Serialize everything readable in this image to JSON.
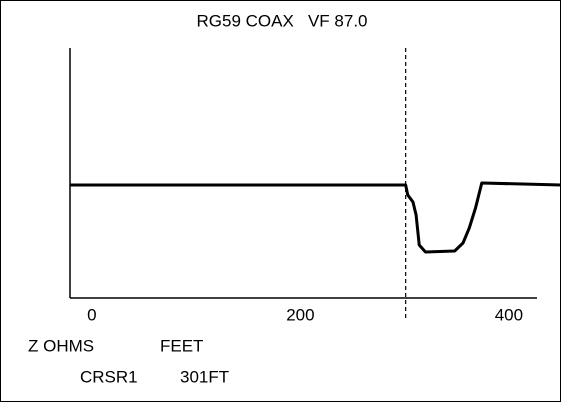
{
  "chart_data": {
    "type": "line",
    "title": "RG59 COAX   VF 87.0",
    "ylabel": "Z OHMS",
    "xlabel": "FEET",
    "x": [
      -21,
      301,
      303,
      308,
      311,
      314,
      320,
      348,
      356,
      362,
      368,
      374,
      450
    ],
    "values": [
      45.2,
      45.2,
      41.2,
      38.4,
      33.2,
      21.2,
      18.4,
      18.8,
      22,
      28,
      36,
      46,
      45.2
    ],
    "color": "#000000",
    "xlim": [
      -21,
      450
    ],
    "xticks": [
      0,
      200,
      400
    ],
    "ylim": [
      0,
      100
    ],
    "cursor": {
      "name": "CRSR1",
      "value": 301,
      "label": "301FT"
    }
  }
}
